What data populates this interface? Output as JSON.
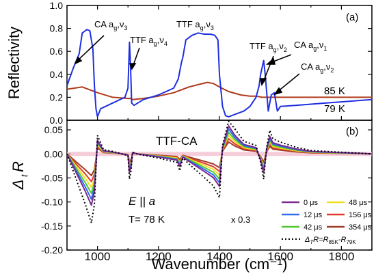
{
  "chart_data": [
    {
      "panel": "(a)",
      "type": "line",
      "ylabel": "Reflectivity",
      "xlim": [
        900,
        1900
      ],
      "ylim": [
        0.0,
        1.0
      ],
      "yticks": [
        "0.0",
        "0.2",
        "0.4",
        "0.6",
        "0.8",
        "1.0"
      ],
      "series": [
        {
          "name": "85 K",
          "color": "#b03a1a",
          "x": [
            900,
            950,
            1000,
            1050,
            1100,
            1108,
            1115,
            1150,
            1200,
            1250,
            1270,
            1300,
            1330,
            1360,
            1380,
            1400,
            1430,
            1470,
            1500,
            1520,
            1540,
            1560,
            1600,
            1650,
            1700,
            1750,
            1800,
            1850,
            1900
          ],
          "y": [
            0.27,
            0.29,
            0.24,
            0.2,
            0.19,
            0.19,
            0.18,
            0.19,
            0.21,
            0.24,
            0.26,
            0.29,
            0.31,
            0.33,
            0.32,
            0.29,
            0.25,
            0.22,
            0.21,
            0.21,
            0.2,
            0.2,
            0.2,
            0.2,
            0.2,
            0.2,
            0.2,
            0.2,
            0.2
          ]
        },
        {
          "name": "79 K",
          "color": "#1f2fe0",
          "x": [
            900,
            920,
            940,
            950,
            960,
            965,
            975,
            985,
            990,
            995,
            1000,
            1010,
            1050,
            1090,
            1100,
            1105,
            1108,
            1112,
            1120,
            1150,
            1200,
            1250,
            1265,
            1275,
            1280,
            1290,
            1310,
            1330,
            1350,
            1370,
            1385,
            1395,
            1400,
            1410,
            1420,
            1430,
            1450,
            1480,
            1500,
            1520,
            1530,
            1535,
            1545,
            1550,
            1560,
            1570,
            1580,
            1590,
            1600,
            1650,
            1700,
            1750,
            1800,
            1850,
            1900
          ],
          "y": [
            0.3,
            0.45,
            0.58,
            0.76,
            0.78,
            0.79,
            0.78,
            0.62,
            0.3,
            0.1,
            0.03,
            0.1,
            0.15,
            0.2,
            0.28,
            0.68,
            0.5,
            0.15,
            0.13,
            0.18,
            0.22,
            0.28,
            0.36,
            0.5,
            0.55,
            0.7,
            0.74,
            0.76,
            0.75,
            0.75,
            0.74,
            0.7,
            0.4,
            0.12,
            0.04,
            0.03,
            0.05,
            0.08,
            0.12,
            0.2,
            0.3,
            0.4,
            0.52,
            0.4,
            0.08,
            0.22,
            0.24,
            0.08,
            0.12,
            0.13,
            0.14,
            0.15,
            0.16,
            0.17,
            0.18
          ]
        }
      ],
      "annotations": [
        {
          "base": "CA a",
          "sub": "g",
          "mode": "ν",
          "mode_sub": "3"
        },
        {
          "base": "TTF a",
          "sub": "g",
          "mode": "ν",
          "mode_sub": "4"
        },
        {
          "base": "TTF a",
          "sub": "g",
          "mode": "ν",
          "mode_sub": "3"
        },
        {
          "base": "TTF a",
          "sub": "g",
          "mode": "ν",
          "mode_sub": "2"
        },
        {
          "base": "CA a",
          "sub": "g",
          "mode": "ν",
          "mode_sub": "1"
        },
        {
          "base": "CA a",
          "sub": "g",
          "mode": "ν",
          "mode_sub": "2"
        }
      ],
      "temperature_labels": [
        "85 K",
        "79 K"
      ]
    },
    {
      "panel": "(b)",
      "type": "line",
      "xlabel": "Wavenumber (cm⁻¹)",
      "xlim": [
        900,
        1900
      ],
      "xticks": [
        "1000",
        "1200",
        "1400",
        "1600",
        "1800"
      ],
      "ylim": [
        -0.2,
        0.07
      ],
      "yticks": [
        "0.05",
        "0.00",
        "-0.05",
        "-0.10",
        "-0.15",
        "-0.20"
      ],
      "sample_label": "TTF-CA",
      "condition_field": "E || a",
      "condition_temp": "T= 78 K",
      "scale_note": "x 0.3",
      "x": [
        900,
        930,
        960,
        980,
        990,
        1000,
        1020,
        1050,
        1100,
        1105,
        1110,
        1115,
        1130,
        1200,
        1260,
        1270,
        1280,
        1300,
        1350,
        1380,
        1400,
        1410,
        1430,
        1450,
        1480,
        1520,
        1535,
        1545,
        1555,
        1565,
        1575,
        1600,
        1650,
        1700,
        1750,
        1800,
        1850,
        1900
      ],
      "profile": [
        0.0,
        -0.3,
        -0.6,
        -0.82,
        -0.6,
        0.22,
        0.05,
        0.03,
        -0.02,
        -0.3,
        -0.2,
        0.02,
        0.0,
        -0.05,
        -0.1,
        -0.2,
        -0.05,
        -0.12,
        -0.28,
        -0.38,
        -0.52,
        0.1,
        0.45,
        0.3,
        0.15,
        0.1,
        -0.1,
        -0.3,
        0.08,
        0.28,
        0.18,
        0.14,
        0.08,
        0.04,
        0.03,
        0.02,
        0.01,
        0.0
      ],
      "series": [
        {
          "name": "0 μs",
          "color": "#7a2a90",
          "amp": 0.13
        },
        {
          "name": "12 μs",
          "color": "#2f6cf0",
          "amp": 0.115
        },
        {
          "name": "42 μs",
          "color": "#52c832",
          "amp": 0.1
        },
        {
          "name": "48 μs",
          "color": "#f0e020",
          "amp": 0.085
        },
        {
          "name": "156 μs",
          "color": "#e03a2a",
          "amp": 0.07
        },
        {
          "name": "354 μs",
          "color": "#a03a2a",
          "amp": 0.055
        }
      ],
      "difference_series": {
        "label": "ΔTR=R85K-R79K",
        "label_delta": "Δ",
        "label_delta_sub": "T",
        "label_R": "R=R",
        "label_sub1": "85K",
        "label_minus": "-R",
        "label_sub2": "79K",
        "amp": 0.175
      },
      "ylabel_delta": "Δ",
      "ylabel_sub": "t",
      "ylabel_R": "R"
    }
  ]
}
